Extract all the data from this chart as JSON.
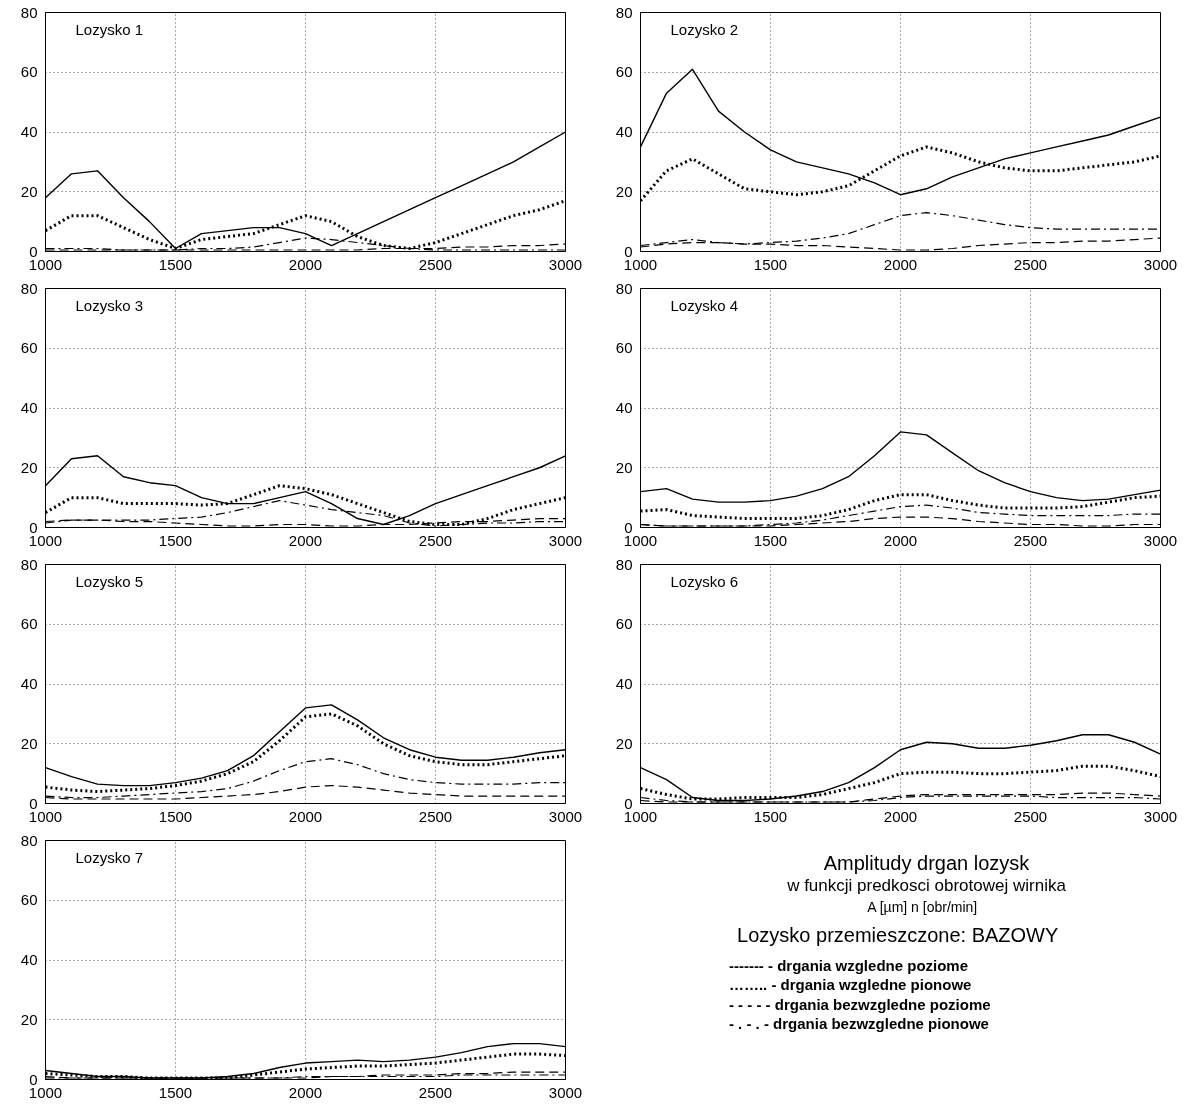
{
  "chart_data": [
    {
      "type": "line",
      "title": "Lozysko 1",
      "x": [
        1000,
        1100,
        1200,
        1300,
        1400,
        1500,
        1600,
        1700,
        1800,
        1900,
        2000,
        2100,
        2200,
        2300,
        2400,
        2500,
        2600,
        2700,
        2800,
        2900,
        3000
      ],
      "xlim": [
        1000,
        3000
      ],
      "xticks": [
        1000,
        1500,
        2000,
        2500,
        3000
      ],
      "ylim": [
        0,
        80
      ],
      "yticks": [
        0,
        20,
        40,
        60,
        80
      ],
      "grid": true,
      "series": [
        {
          "color": "#000000",
          "line_style": "solid",
          "values": [
            18,
            26,
            27,
            18,
            10,
            1,
            6,
            7,
            8,
            8,
            6,
            2,
            6,
            10,
            14,
            18,
            22,
            26,
            30,
            35,
            40
          ]
        },
        {
          "color": "#000000",
          "line_style": "dotted",
          "values": [
            7,
            12,
            12,
            8,
            4,
            1,
            4,
            5,
            6,
            9,
            12,
            10,
            5,
            2,
            1,
            3,
            6,
            9,
            12,
            14,
            17
          ]
        },
        {
          "color": "#000000",
          "line_style": "dashed",
          "values": [
            0.5,
            0.5,
            0.5,
            0.5,
            0.5,
            0.5,
            0.5,
            0.5,
            0.5,
            0.5,
            0.5,
            0.5,
            0.5,
            1,
            1,
            1,
            1.5,
            1.5,
            2,
            2,
            2.5
          ]
        },
        {
          "color": "#000000",
          "line_style": "dashdot",
          "values": [
            1,
            1,
            1,
            0.5,
            0.5,
            0.5,
            1,
            1,
            1.5,
            3,
            4.5,
            4,
            3,
            2,
            1,
            0.5,
            0.5,
            0.5,
            0.5,
            0.5,
            0.5
          ]
        }
      ]
    },
    {
      "type": "line",
      "title": "Lozysko 2",
      "x": [
        1000,
        1100,
        1200,
        1300,
        1400,
        1500,
        1600,
        1700,
        1800,
        1900,
        2000,
        2100,
        2200,
        2300,
        2400,
        2500,
        2600,
        2700,
        2800,
        2900,
        3000
      ],
      "xlim": [
        1000,
        3000
      ],
      "xticks": [
        1000,
        1500,
        2000,
        2500,
        3000
      ],
      "ylim": [
        0,
        80
      ],
      "yticks": [
        0,
        20,
        40,
        60,
        80
      ],
      "grid": true,
      "series": [
        {
          "color": "#000000",
          "line_style": "solid",
          "values": [
            35,
            53,
            61,
            47,
            40,
            34,
            30,
            28,
            26,
            23,
            19,
            21,
            25,
            28,
            31,
            33,
            35,
            37,
            39,
            42,
            45
          ]
        },
        {
          "color": "#000000",
          "line_style": "dotted",
          "values": [
            17,
            27,
            31,
            26,
            21,
            20,
            19,
            20,
            22,
            27,
            32,
            35,
            33,
            30,
            28,
            27,
            27,
            28,
            29,
            30,
            32
          ]
        },
        {
          "color": "#000000",
          "line_style": "dashed",
          "values": [
            1.5,
            2.5,
            3,
            3,
            2.5,
            2.5,
            2,
            2,
            1.5,
            1,
            0.5,
            0.5,
            1,
            2,
            2.5,
            3,
            3,
            3.5,
            3.5,
            4,
            4.5
          ]
        },
        {
          "color": "#000000",
          "line_style": "dashdot",
          "values": [
            2,
            3,
            4,
            3,
            2.5,
            3,
            3.5,
            4.5,
            6,
            9,
            12,
            13,
            12,
            10.5,
            9,
            8,
            7.5,
            7.5,
            7.5,
            7.5,
            7.5
          ]
        }
      ]
    },
    {
      "type": "line",
      "title": "Lozysko 3",
      "x": [
        1000,
        1100,
        1200,
        1300,
        1400,
        1500,
        1600,
        1700,
        1800,
        1900,
        2000,
        2100,
        2200,
        2300,
        2400,
        2500,
        2600,
        2700,
        2800,
        2900,
        3000
      ],
      "xlim": [
        1000,
        3000
      ],
      "xticks": [
        1000,
        1500,
        2000,
        2500,
        3000
      ],
      "ylim": [
        0,
        80
      ],
      "yticks": [
        0,
        20,
        40,
        60,
        80
      ],
      "grid": true,
      "series": [
        {
          "color": "#000000",
          "line_style": "solid",
          "values": [
            14,
            23,
            24,
            17,
            15,
            14,
            10,
            8,
            8,
            10,
            12,
            8,
            3,
            1,
            4,
            8,
            11,
            14,
            17,
            20,
            24
          ]
        },
        {
          "color": "#000000",
          "line_style": "dotted",
          "values": [
            5,
            10,
            10,
            8,
            8,
            8,
            7.5,
            8,
            11,
            14,
            13,
            11,
            8,
            5,
            2,
            1,
            1,
            3,
            6,
            8,
            10
          ]
        },
        {
          "color": "#000000",
          "line_style": "dashed",
          "values": [
            2,
            2.5,
            2.5,
            2,
            2,
            1.5,
            1,
            0.5,
            0.5,
            1,
            1,
            0.5,
            0.5,
            1,
            1,
            1.5,
            2,
            2,
            2.5,
            3,
            3
          ]
        },
        {
          "color": "#000000",
          "line_style": "dashdot",
          "values": [
            1.5,
            2.5,
            2.5,
            2.5,
            2.5,
            3,
            3.5,
            5,
            7,
            9,
            7.5,
            6,
            5,
            4,
            1.5,
            0.5,
            1,
            1.5,
            1.5,
            2,
            2
          ]
        }
      ]
    },
    {
      "type": "line",
      "title": "Lozysko 4",
      "x": [
        1000,
        1100,
        1200,
        1300,
        1400,
        1500,
        1600,
        1700,
        1800,
        1900,
        2000,
        2100,
        2200,
        2300,
        2400,
        2500,
        2600,
        2700,
        2800,
        2900,
        3000
      ],
      "xlim": [
        1000,
        3000
      ],
      "xticks": [
        1000,
        1500,
        2000,
        2500,
        3000
      ],
      "ylim": [
        0,
        80
      ],
      "yticks": [
        0,
        20,
        40,
        60,
        80
      ],
      "grid": true,
      "series": [
        {
          "color": "#000000",
          "line_style": "solid",
          "values": [
            12,
            13,
            9.5,
            8.5,
            8.5,
            9,
            10.5,
            13,
            17,
            24,
            32,
            31,
            25,
            19,
            15,
            12,
            10,
            9,
            9.5,
            11,
            12.5
          ]
        },
        {
          "color": "#000000",
          "line_style": "dotted",
          "values": [
            5.5,
            6,
            4,
            3.5,
            3,
            3,
            3,
            4,
            6,
            9,
            11,
            11,
            9,
            7.5,
            6.5,
            6.5,
            6.5,
            7,
            8.5,
            10,
            10.5
          ]
        },
        {
          "color": "#000000",
          "line_style": "dashed",
          "values": [
            1,
            0.5,
            0.5,
            0.5,
            0.5,
            0.5,
            1,
            1.5,
            2,
            3,
            3.5,
            3.5,
            3,
            2,
            1.5,
            1,
            1,
            0.5,
            0.5,
            1,
            1
          ]
        },
        {
          "color": "#000000",
          "line_style": "dashdot",
          "values": [
            1,
            0.5,
            0.5,
            0.5,
            0.5,
            1,
            1.5,
            2.5,
            4,
            5.5,
            7,
            7.5,
            6.5,
            5,
            4.5,
            4,
            4,
            4,
            4,
            4.5,
            4.5
          ]
        }
      ]
    },
    {
      "type": "line",
      "title": "Lozysko 5",
      "x": [
        1000,
        1100,
        1200,
        1300,
        1400,
        1500,
        1600,
        1700,
        1800,
        1900,
        2000,
        2100,
        2200,
        2300,
        2400,
        2500,
        2600,
        2700,
        2800,
        2900,
        3000
      ],
      "xlim": [
        1000,
        3000
      ],
      "xticks": [
        1000,
        1500,
        2000,
        2500,
        3000
      ],
      "ylim": [
        0,
        80
      ],
      "yticks": [
        0,
        20,
        40,
        60,
        80
      ],
      "grid": true,
      "series": [
        {
          "color": "#000000",
          "line_style": "solid",
          "values": [
            12,
            9,
            6.5,
            6,
            6,
            7,
            8.5,
            11,
            16,
            24,
            32,
            33,
            28,
            22,
            18,
            15.5,
            14.5,
            14.5,
            15.5,
            17,
            18
          ]
        },
        {
          "color": "#000000",
          "line_style": "dotted",
          "values": [
            5.5,
            4.5,
            4,
            4.5,
            5,
            6,
            7.5,
            10,
            14,
            21,
            29,
            30,
            26,
            20,
            16,
            14,
            13,
            13,
            14,
            15,
            16
          ]
        },
        {
          "color": "#000000",
          "line_style": "dashed",
          "values": [
            2,
            1.5,
            1.5,
            1.5,
            1.5,
            1.5,
            2,
            2.5,
            3,
            4,
            5.5,
            6,
            5.5,
            4.5,
            3.5,
            3,
            2.5,
            2.5,
            2.5,
            2.5,
            2.5
          ]
        },
        {
          "color": "#000000",
          "line_style": "dashdot",
          "values": [
            2.5,
            2,
            2,
            2.5,
            3,
            3.5,
            4,
            5,
            7.5,
            11,
            14,
            15,
            13,
            10,
            8,
            7,
            6.5,
            6.5,
            6.5,
            7,
            7
          ]
        }
      ]
    },
    {
      "type": "line",
      "title": "Lozysko 6",
      "x": [
        1000,
        1100,
        1200,
        1300,
        1400,
        1500,
        1600,
        1700,
        1800,
        1900,
        2000,
        2100,
        2200,
        2300,
        2400,
        2500,
        2600,
        2700,
        2800,
        2900,
        3000
      ],
      "xlim": [
        1000,
        3000
      ],
      "xticks": [
        1000,
        1500,
        2000,
        2500,
        3000
      ],
      "ylim": [
        0,
        80
      ],
      "yticks": [
        0,
        20,
        40,
        60,
        80
      ],
      "grid": true,
      "series": [
        {
          "color": "#000000",
          "line_style": "solid",
          "values": [
            12,
            8,
            2,
            1,
            1,
            1.5,
            2.5,
            4,
            7,
            12,
            18,
            20.5,
            20,
            18.5,
            18.5,
            19.5,
            21,
            23,
            23,
            20.5,
            16.5
          ]
        },
        {
          "color": "#000000",
          "line_style": "dotted",
          "values": [
            5,
            3,
            1.5,
            1.5,
            2,
            2,
            2,
            3,
            5,
            7,
            10,
            10.5,
            10.5,
            10,
            10,
            10.5,
            11,
            12.5,
            12.5,
            11,
            9
          ]
        },
        {
          "color": "#000000",
          "line_style": "dashed",
          "values": [
            1,
            0.5,
            0.5,
            0.5,
            0.5,
            0.5,
            0.5,
            0.5,
            0.5,
            1.5,
            2.5,
            3,
            3,
            3,
            3,
            3,
            3,
            3.5,
            3.5,
            3,
            2.5
          ]
        },
        {
          "color": "#000000",
          "line_style": "dashdot",
          "values": [
            2,
            1,
            0.5,
            0.5,
            0.5,
            0.5,
            0.5,
            0.5,
            0.5,
            1,
            2,
            2.5,
            2.5,
            2.5,
            2.5,
            2.5,
            2,
            2,
            2,
            2,
            1.5
          ]
        }
      ]
    },
    {
      "type": "line",
      "title": "Lozysko 7",
      "x": [
        1000,
        1100,
        1200,
        1300,
        1400,
        1500,
        1600,
        1700,
        1800,
        1900,
        2000,
        2100,
        2200,
        2300,
        2400,
        2500,
        2600,
        2700,
        2800,
        2900,
        3000
      ],
      "xlim": [
        1000,
        3000
      ],
      "xticks": [
        1000,
        1500,
        2000,
        2500,
        3000
      ],
      "ylim": [
        0,
        80
      ],
      "yticks": [
        0,
        20,
        40,
        60,
        80
      ],
      "grid": true,
      "series": [
        {
          "color": "#000000",
          "line_style": "solid",
          "values": [
            3,
            2,
            1,
            1,
            0.5,
            0.5,
            0.5,
            1,
            2,
            4,
            5.5,
            6,
            6.5,
            6,
            6.5,
            7.5,
            9,
            11,
            12,
            12,
            11
          ]
        },
        {
          "color": "#000000",
          "line_style": "dotted",
          "values": [
            2,
            1.5,
            1,
            1,
            0.5,
            0.5,
            0.5,
            0.5,
            1.5,
            2.5,
            3.5,
            4,
            4.5,
            4.5,
            5,
            5.5,
            6.5,
            7.5,
            8.5,
            8.5,
            8
          ]
        },
        {
          "color": "#000000",
          "line_style": "dashed",
          "values": [
            1,
            0.5,
            0.5,
            0.5,
            0.5,
            0.5,
            0.5,
            0.5,
            0.5,
            0.5,
            0.5,
            1,
            1,
            1.5,
            1.5,
            1.5,
            2,
            2,
            2.5,
            2.5,
            2.5
          ]
        },
        {
          "color": "#000000",
          "line_style": "dashdot",
          "values": [
            0.5,
            0.5,
            0.5,
            0.5,
            0.5,
            0.5,
            0.5,
            0.5,
            0.5,
            0.5,
            1,
            1,
            1,
            1,
            1,
            1,
            1.5,
            1.5,
            1.5,
            1.5,
            1.5
          ]
        }
      ]
    },
    {
      "type": "other",
      "title": "Amplitudy drgan lozysk",
      "subtitle": "w funkcji predkosci obrotowej wirnika",
      "annotations": [
        "A [µm]   n [obr/min]",
        "Lozysko przemieszczone:  BAZOWY",
        "-------  - drgania wzgledne poziome",
        "……..   - drgania wzgledne pionowe",
        "- - - -   - drgania bezwzgledne poziome",
        "- . - .    - drgania bezwzgledne pionowe"
      ]
    }
  ]
}
